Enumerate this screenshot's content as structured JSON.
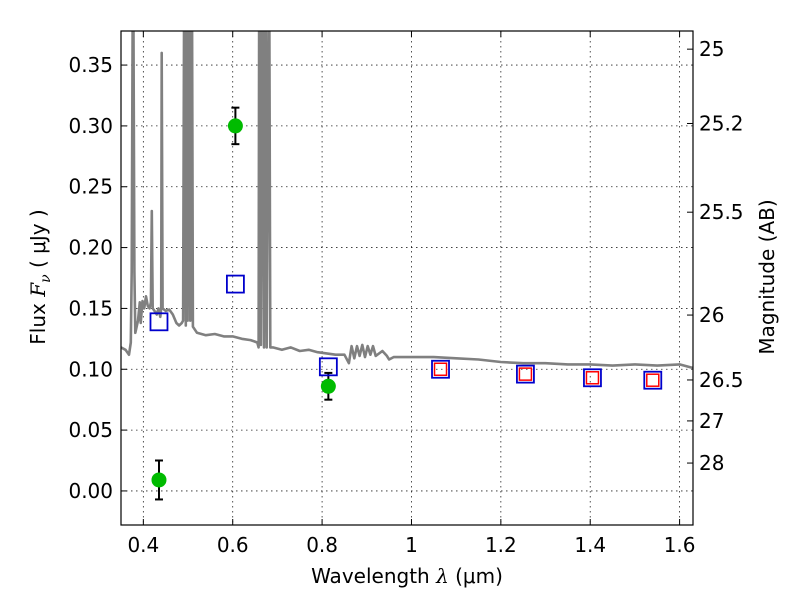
{
  "chart_data": {
    "type": "scatter",
    "title": "",
    "xlabel": {
      "pre": "Wavelength  ",
      "symbol": "λ",
      "unit": " (μm)"
    },
    "ylabel": {
      "pre": "Flux  ",
      "symbol": "F",
      "sub": "ν",
      "unit": "  ( μJy )"
    },
    "y2label": "Magnitude (AB)",
    "xlim": [
      0.35,
      1.63
    ],
    "ylim": [
      -0.028,
      0.378
    ],
    "grid": true,
    "x_ticks": [
      {
        "value": 0.4,
        "label": "0.4"
      },
      {
        "value": 0.6,
        "label": "0.6"
      },
      {
        "value": 0.8,
        "label": "0.8"
      },
      {
        "value": 1.0,
        "label": "1"
      },
      {
        "value": 1.2,
        "label": "1.2"
      },
      {
        "value": 1.4,
        "label": "1.4"
      },
      {
        "value": 1.6,
        "label": "1.6"
      }
    ],
    "y_ticks": [
      {
        "value": 0.0,
        "label": "0.00"
      },
      {
        "value": 0.05,
        "label": "0.05"
      },
      {
        "value": 0.1,
        "label": "0.10"
      },
      {
        "value": 0.15,
        "label": "0.15"
      },
      {
        "value": 0.2,
        "label": "0.20"
      },
      {
        "value": 0.25,
        "label": "0.25"
      },
      {
        "value": 0.3,
        "label": "0.30"
      },
      {
        "value": 0.35,
        "label": "0.35"
      }
    ],
    "y2_ticks": [
      {
        "label": "25",
        "mag": 25.0
      },
      {
        "label": "25.2",
        "mag": 25.2
      },
      {
        "label": "25.5",
        "mag": 25.5
      },
      {
        "label": "26",
        "mag": 26.0
      },
      {
        "label": "26.5",
        "mag": 26.5
      },
      {
        "label": "27",
        "mag": 27.0
      },
      {
        "label": "28",
        "mag": 28.0
      }
    ],
    "series": [
      {
        "kind": "spectrum",
        "color": "#808080",
        "points": [
          [
            0.35,
            0.118
          ],
          [
            0.36,
            0.116
          ],
          [
            0.368,
            0.112
          ],
          [
            0.372,
            0.122
          ],
          [
            0.374,
            0.18
          ],
          [
            0.376,
            0.378
          ],
          [
            0.378,
            0.378
          ],
          [
            0.38,
            0.18
          ],
          [
            0.382,
            0.13
          ],
          [
            0.388,
            0.14
          ],
          [
            0.392,
            0.155
          ],
          [
            0.394,
            0.138
          ],
          [
            0.398,
            0.156
          ],
          [
            0.402,
            0.15
          ],
          [
            0.406,
            0.16
          ],
          [
            0.41,
            0.152
          ],
          [
            0.414,
            0.15
          ],
          [
            0.417,
            0.155
          ],
          [
            0.419,
            0.23
          ],
          [
            0.421,
            0.15
          ],
          [
            0.425,
            0.148
          ],
          [
            0.43,
            0.145
          ],
          [
            0.434,
            0.15
          ],
          [
            0.438,
            0.143
          ],
          [
            0.44,
            0.15
          ],
          [
            0.441,
            0.36
          ],
          [
            0.443,
            0.15
          ],
          [
            0.45,
            0.148
          ],
          [
            0.458,
            0.149
          ],
          [
            0.466,
            0.145
          ],
          [
            0.474,
            0.138
          ],
          [
            0.48,
            0.136
          ],
          [
            0.486,
            0.138
          ],
          [
            0.489,
            0.14
          ],
          [
            0.491,
            0.378
          ],
          [
            0.493,
            0.378
          ],
          [
            0.495,
            0.136
          ],
          [
            0.497,
            0.378
          ],
          [
            0.499,
            0.14
          ],
          [
            0.501,
            0.378
          ],
          [
            0.503,
            0.378
          ],
          [
            0.505,
            0.14
          ],
          [
            0.507,
            0.378
          ],
          [
            0.509,
            0.378
          ],
          [
            0.511,
            0.135
          ],
          [
            0.52,
            0.13
          ],
          [
            0.54,
            0.128
          ],
          [
            0.56,
            0.129
          ],
          [
            0.58,
            0.127
          ],
          [
            0.6,
            0.127
          ],
          [
            0.62,
            0.125
          ],
          [
            0.64,
            0.124
          ],
          [
            0.655,
            0.122
          ],
          [
            0.658,
            0.118
          ],
          [
            0.659,
            0.378
          ],
          [
            0.661,
            0.378
          ],
          [
            0.663,
            0.12
          ],
          [
            0.666,
            0.378
          ],
          [
            0.668,
            0.378
          ],
          [
            0.67,
            0.118
          ],
          [
            0.672,
            0.378
          ],
          [
            0.674,
            0.378
          ],
          [
            0.676,
            0.118
          ],
          [
            0.68,
            0.378
          ],
          [
            0.682,
            0.378
          ],
          [
            0.684,
            0.118
          ],
          [
            0.69,
            0.118
          ],
          [
            0.71,
            0.116
          ],
          [
            0.73,
            0.118
          ],
          [
            0.75,
            0.115
          ],
          [
            0.77,
            0.116
          ],
          [
            0.79,
            0.114
          ],
          [
            0.81,
            0.113
          ],
          [
            0.83,
            0.112
          ],
          [
            0.85,
            0.112
          ],
          [
            0.86,
            0.105
          ],
          [
            0.866,
            0.119
          ],
          [
            0.872,
            0.109
          ],
          [
            0.878,
            0.119
          ],
          [
            0.884,
            0.111
          ],
          [
            0.89,
            0.12
          ],
          [
            0.896,
            0.11
          ],
          [
            0.902,
            0.119
          ],
          [
            0.908,
            0.112
          ],
          [
            0.914,
            0.119
          ],
          [
            0.92,
            0.111
          ],
          [
            0.935,
            0.115
          ],
          [
            0.945,
            0.111
          ],
          [
            0.95,
            0.108
          ],
          [
            0.96,
            0.11
          ],
          [
            0.98,
            0.11
          ],
          [
            1.0,
            0.11
          ],
          [
            1.05,
            0.11
          ],
          [
            1.1,
            0.109
          ],
          [
            1.15,
            0.108
          ],
          [
            1.2,
            0.106
          ],
          [
            1.25,
            0.105
          ],
          [
            1.3,
            0.105
          ],
          [
            1.35,
            0.104
          ],
          [
            1.4,
            0.104
          ],
          [
            1.45,
            0.103
          ],
          [
            1.5,
            0.104
          ],
          [
            1.55,
            0.103
          ],
          [
            1.6,
            0.104
          ],
          [
            1.63,
            0.101
          ]
        ]
      },
      {
        "kind": "observed",
        "color": "#00bb00",
        "points": [
          {
            "x": 0.435,
            "y": 0.009,
            "err": 0.016
          },
          {
            "x": 0.606,
            "y": 0.3,
            "err": 0.015
          },
          {
            "x": 0.814,
            "y": 0.086,
            "err": 0.011
          }
        ]
      },
      {
        "kind": "model-blue",
        "color": "#0000cc",
        "points": [
          {
            "x": 0.435,
            "y": 0.139
          },
          {
            "x": 0.606,
            "y": 0.17
          },
          {
            "x": 0.814,
            "y": 0.102
          },
          {
            "x": 1.065,
            "y": 0.1
          },
          {
            "x": 1.255,
            "y": 0.096
          },
          {
            "x": 1.405,
            "y": 0.093
          },
          {
            "x": 1.54,
            "y": 0.091
          }
        ]
      },
      {
        "kind": "model-red",
        "color": "#ff0000",
        "points": [
          {
            "x": 1.065,
            "y": 0.1
          },
          {
            "x": 1.255,
            "y": 0.096
          },
          {
            "x": 1.405,
            "y": 0.093
          },
          {
            "x": 1.54,
            "y": 0.091
          }
        ]
      }
    ]
  }
}
